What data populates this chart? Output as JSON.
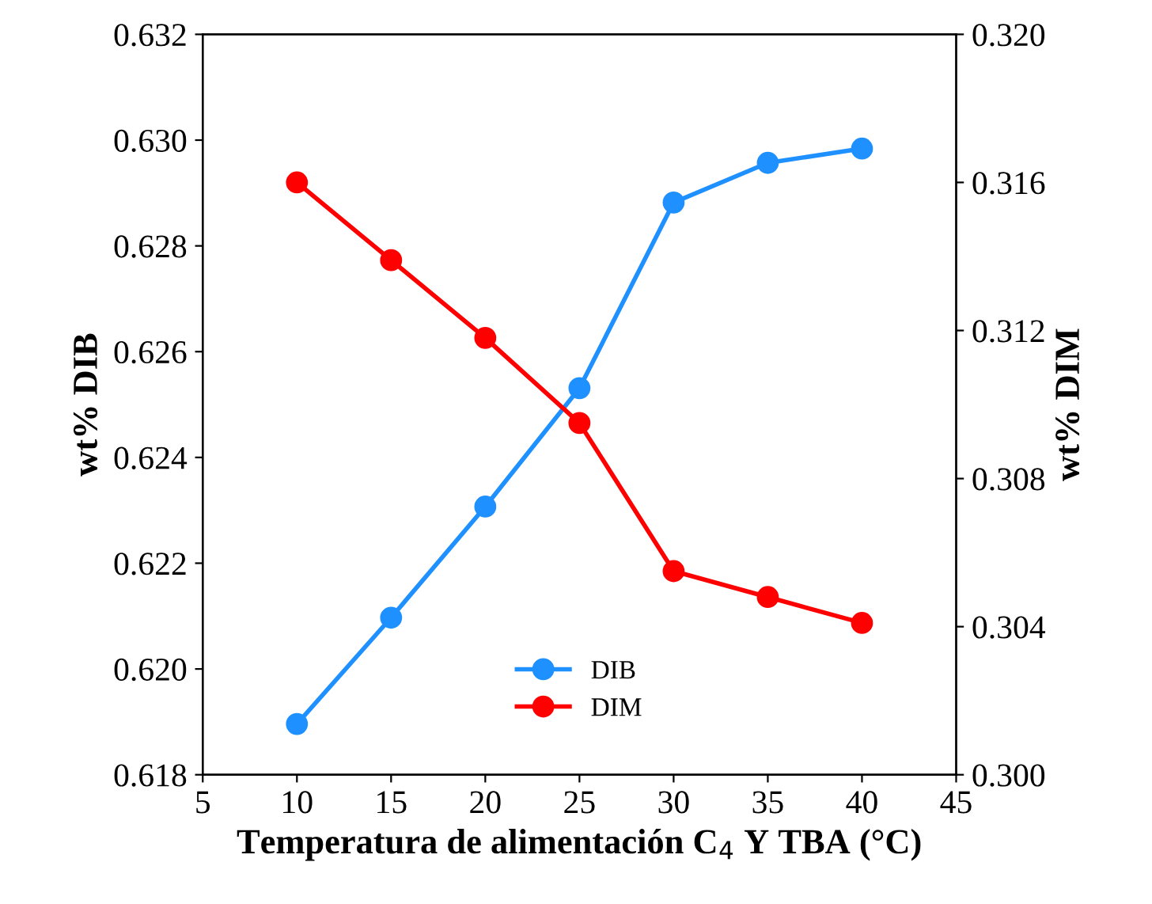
{
  "chart_data": {
    "type": "line",
    "xlabel": "Temperatura de alimentación C$_{4}$ Y TBA (°C)",
    "ylabel": "wt% DIB",
    "y2label": "wt% DIM",
    "x": [
      10,
      15,
      20,
      25,
      30,
      35,
      40
    ],
    "series": [
      {
        "name": "DIB",
        "color": "#1e90ff",
        "values": [
          0.61896,
          0.62097,
          0.62307,
          0.62531,
          0.62882,
          0.62957,
          0.62984
        ]
      },
      {
        "name": "DIM",
        "color": "#ff0000",
        "axis": "y2",
        "values": [
          0.316,
          0.3139,
          0.3118,
          0.3095,
          0.3055,
          0.3048,
          0.3041
        ]
      }
    ],
    "xlim": [
      5,
      45
    ],
    "xticks": [
      5,
      10,
      15,
      20,
      25,
      30,
      35,
      40,
      45
    ],
    "ylim": [
      0.618,
      0.632
    ],
    "yticks": [
      0.618,
      {
        "value": 0.62,
        "label": "0.620"
      },
      0.622,
      0.624,
      0.626,
      0.628,
      {
        "value": 0.63,
        "label": "0.630"
      },
      0.632
    ],
    "y2lim": [
      0.3,
      0.32
    ],
    "y2ticks": [
      {
        "value": 0.3,
        "label": "0.300"
      },
      0.304,
      0.308,
      0.312,
      0.316,
      {
        "value": 0.32,
        "label": "0.320"
      }
    ],
    "marker": "circle",
    "line_style": "solid",
    "legend": "bottom",
    "grid": false
  }
}
